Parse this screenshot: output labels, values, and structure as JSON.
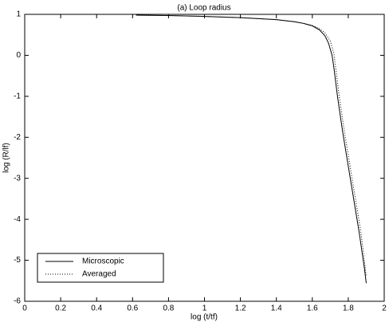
{
  "chart_data": {
    "type": "line",
    "title": "(a) Loop radius",
    "x_label": "log (t/tf)",
    "y_label": "log (R/lf)",
    "xlim": [
      0,
      2
    ],
    "ylim": [
      -6,
      1
    ],
    "xticks": [
      0,
      0.2,
      0.4,
      0.6,
      0.8,
      1,
      1.2,
      1.4,
      1.6,
      1.8,
      2
    ],
    "yticks": [
      -6,
      -5,
      -4,
      -3,
      -2,
      -1,
      0,
      1
    ],
    "legend": "lower left",
    "series": [
      {
        "name": "Microscopic",
        "color": "#000000",
        "style": "solid",
        "x": [
          0.62,
          0.8,
          1.0,
          1.2,
          1.4,
          1.5,
          1.55,
          1.6,
          1.64,
          1.67,
          1.69,
          1.71,
          1.72,
          1.74,
          1.77,
          1.8,
          1.83,
          1.86,
          1.89,
          1.9
        ],
        "values": [
          0.98,
          0.97,
          0.95,
          0.92,
          0.87,
          0.82,
          0.78,
          0.72,
          0.62,
          0.48,
          0.3,
          0.0,
          -0.3,
          -1.0,
          -1.9,
          -2.7,
          -3.5,
          -4.3,
          -5.2,
          -5.56
        ]
      },
      {
        "name": "Averaged",
        "color": "#000000",
        "style": "dotted",
        "x": [
          0.62,
          0.8,
          1.0,
          1.2,
          1.4,
          1.5,
          1.55,
          1.6,
          1.64,
          1.67,
          1.7,
          1.72,
          1.73,
          1.75,
          1.78,
          1.81,
          1.84,
          1.87,
          1.89,
          1.9
        ],
        "values": [
          0.98,
          0.97,
          0.95,
          0.92,
          0.87,
          0.82,
          0.78,
          0.73,
          0.65,
          0.55,
          0.35,
          0.05,
          -0.3,
          -1.0,
          -1.9,
          -2.7,
          -3.5,
          -4.3,
          -5.0,
          -5.4
        ]
      }
    ]
  }
}
